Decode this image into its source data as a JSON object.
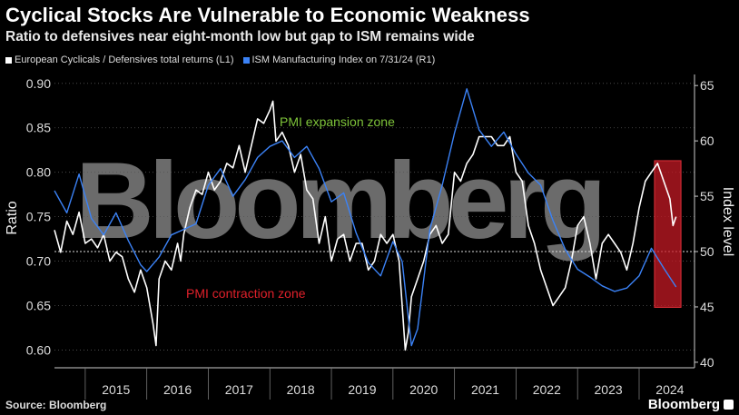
{
  "header": {
    "title": "Cyclical Stocks Are Vulnerable to Economic Weakness",
    "subtitle": "Ratio to defensives near eight-month low but gap to ISM remains wide"
  },
  "legend": {
    "items": [
      {
        "label": "European Cyclicals / Defensives total returns (L1)",
        "color": "#ffffff"
      },
      {
        "label": "ISM Manufacturing Index on 7/31/24 (R1)",
        "color": "#3b82f6"
      }
    ]
  },
  "footer": {
    "source": "Source: Bloomberg",
    "logo": "Bloomberg"
  },
  "watermark": "Bloomberg",
  "chart_data": {
    "type": "line",
    "x_ticks": [
      "2015",
      "2016",
      "2017",
      "2018",
      "2019",
      "2020",
      "2021",
      "2022",
      "2023",
      "2024"
    ],
    "xlim": [
      2014.5,
      2024.9
    ],
    "left_axis": {
      "label": "Ratio",
      "ylim": [
        0.58,
        0.91
      ],
      "ticks": [
        "0.60",
        "0.65",
        "0.70",
        "0.75",
        "0.80",
        "0.85",
        "0.90"
      ]
    },
    "right_axis": {
      "label": "Index level",
      "ylim": [
        39.5,
        66
      ],
      "ticks": [
        "40",
        "45",
        "50",
        "55",
        "60",
        "65"
      ]
    },
    "reference_line_right": 50,
    "annotations": {
      "expansion": {
        "text": "PMI expansion zone",
        "color": "#7ec43a"
      },
      "contraction": {
        "text": "PMI contraction zone",
        "color": "#e0202a"
      }
    },
    "highlight": {
      "x_range": [
        2024.25,
        2024.68
      ],
      "color": "#c41a24"
    },
    "series": [
      {
        "name": "European Cyclicals / Defensives total returns (L1)",
        "axis": "left",
        "color": "#ffffff",
        "x": [
          2014.5,
          2014.6,
          2014.7,
          2014.8,
          2014.9,
          2015.0,
          2015.1,
          2015.2,
          2015.3,
          2015.4,
          2015.5,
          2015.6,
          2015.7,
          2015.8,
          2015.9,
          2016.0,
          2016.1,
          2016.15,
          2016.2,
          2016.3,
          2016.4,
          2016.5,
          2016.55,
          2016.6,
          2016.7,
          2016.8,
          2016.9,
          2017.0,
          2017.1,
          2017.2,
          2017.3,
          2017.4,
          2017.5,
          2017.6,
          2017.7,
          2017.8,
          2017.9,
          2018.0,
          2018.05,
          2018.1,
          2018.2,
          2018.3,
          2018.4,
          2018.5,
          2018.6,
          2018.7,
          2018.8,
          2018.9,
          2019.0,
          2019.1,
          2019.2,
          2019.3,
          2019.4,
          2019.5,
          2019.6,
          2019.7,
          2019.8,
          2019.9,
          2020.0,
          2020.1,
          2020.15,
          2020.2,
          2020.25,
          2020.3,
          2020.4,
          2020.5,
          2020.6,
          2020.7,
          2020.8,
          2020.9,
          2021.0,
          2021.1,
          2021.2,
          2021.3,
          2021.4,
          2021.5,
          2021.6,
          2021.7,
          2021.8,
          2021.9,
          2022.0,
          2022.1,
          2022.2,
          2022.3,
          2022.4,
          2022.5,
          2022.6,
          2022.7,
          2022.8,
          2022.9,
          2023.0,
          2023.1,
          2023.2,
          2023.3,
          2023.4,
          2023.5,
          2023.6,
          2023.7,
          2023.8,
          2023.9,
          2024.0,
          2024.1,
          2024.2,
          2024.3,
          2024.4,
          2024.5,
          2024.55,
          2024.6
        ],
        "values": [
          0.735,
          0.71,
          0.745,
          0.73,
          0.755,
          0.72,
          0.725,
          0.715,
          0.73,
          0.7,
          0.71,
          0.705,
          0.68,
          0.665,
          0.69,
          0.67,
          0.63,
          0.605,
          0.68,
          0.7,
          0.69,
          0.72,
          0.7,
          0.73,
          0.76,
          0.78,
          0.775,
          0.8,
          0.78,
          0.79,
          0.81,
          0.805,
          0.83,
          0.8,
          0.83,
          0.86,
          0.855,
          0.87,
          0.88,
          0.835,
          0.845,
          0.83,
          0.8,
          0.82,
          0.78,
          0.77,
          0.72,
          0.75,
          0.7,
          0.725,
          0.73,
          0.7,
          0.72,
          0.72,
          0.69,
          0.7,
          0.73,
          0.72,
          0.73,
          0.7,
          0.65,
          0.6,
          0.62,
          0.66,
          0.68,
          0.7,
          0.73,
          0.74,
          0.72,
          0.73,
          0.8,
          0.79,
          0.81,
          0.82,
          0.84,
          0.84,
          0.84,
          0.83,
          0.83,
          0.84,
          0.8,
          0.79,
          0.74,
          0.72,
          0.69,
          0.67,
          0.65,
          0.66,
          0.67,
          0.7,
          0.74,
          0.75,
          0.72,
          0.68,
          0.72,
          0.73,
          0.72,
          0.71,
          0.69,
          0.72,
          0.76,
          0.79,
          0.8,
          0.81,
          0.79,
          0.77,
          0.74,
          0.75
        ]
      },
      {
        "name": "ISM Manufacturing Index on 7/31/24 (R1)",
        "axis": "right",
        "color": "#3b82f6",
        "x": [
          2014.5,
          2014.7,
          2014.9,
          2015.1,
          2015.3,
          2015.5,
          2015.7,
          2015.9,
          2016.0,
          2016.2,
          2016.4,
          2016.6,
          2016.8,
          2017.0,
          2017.2,
          2017.4,
          2017.6,
          2017.8,
          2018.0,
          2018.2,
          2018.4,
          2018.6,
          2018.8,
          2019.0,
          2019.2,
          2019.4,
          2019.6,
          2019.8,
          2020.0,
          2020.15,
          2020.3,
          2020.4,
          2020.6,
          2020.8,
          2021.0,
          2021.2,
          2021.4,
          2021.6,
          2021.8,
          2022.0,
          2022.2,
          2022.4,
          2022.6,
          2022.8,
          2023.0,
          2023.2,
          2023.4,
          2023.6,
          2023.8,
          2024.0,
          2024.2,
          2024.4,
          2024.6
        ],
        "values": [
          55.5,
          53.5,
          57,
          53,
          51.5,
          53.5,
          51,
          48.8,
          48.2,
          49.5,
          51.5,
          52,
          52.5,
          56,
          57.5,
          55,
          56.5,
          58.5,
          59.5,
          60,
          58.5,
          59.5,
          57.5,
          54.5,
          55.3,
          51.7,
          49,
          47.8,
          50.9,
          49.1,
          41.5,
          43,
          52,
          56,
          60.7,
          64.7,
          61,
          59.5,
          60.8,
          58.8,
          57.1,
          56,
          52.8,
          50.2,
          48.4,
          47.7,
          46.9,
          46.4,
          46.7,
          47.8,
          50.3,
          48.5,
          46.8
        ]
      }
    ]
  }
}
